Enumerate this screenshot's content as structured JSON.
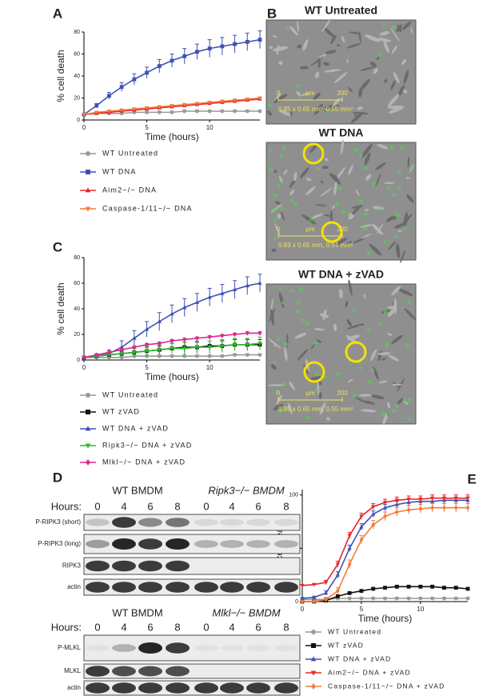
{
  "chart_data": [
    {
      "type": "line",
      "label": "A",
      "ylabel": "% cell death",
      "xlabel": "Time (hours)",
      "xlim": [
        0,
        14
      ],
      "xticks": [
        0,
        5,
        10
      ],
      "ylim": [
        0,
        80
      ],
      "yticks": [
        0,
        20,
        40,
        60,
        80
      ],
      "x": [
        0,
        1,
        2,
        3,
        4,
        5,
        6,
        7,
        8,
        9,
        10,
        11,
        12,
        13,
        14
      ],
      "series": [
        {
          "name": "WT Untreated",
          "color": "#9a9a9a",
          "marker": "circle",
          "values": [
            5,
            6,
            6,
            6,
            7,
            7,
            7,
            7,
            8,
            8,
            8,
            8,
            8,
            8,
            8
          ],
          "errors": [
            1,
            1,
            1,
            1,
            1,
            1,
            1,
            1,
            1,
            1,
            1,
            1,
            1,
            1,
            1
          ]
        },
        {
          "name": "WT DNA",
          "color": "#3f51b5",
          "marker": "square",
          "values": [
            5,
            13,
            22,
            30,
            37,
            43,
            49,
            54,
            58,
            62,
            65,
            67,
            69,
            71,
            73
          ],
          "errors": [
            1,
            2,
            3,
            4,
            5,
            5,
            6,
            6,
            7,
            7,
            8,
            8,
            8,
            8,
            8
          ]
        },
        {
          "name": "Aim2−/− DNA",
          "color": "#e8262b",
          "marker": "tri-up",
          "values": [
            5,
            6,
            7,
            8,
            9,
            10,
            11,
            12,
            13,
            14,
            15,
            16,
            17,
            18,
            19
          ],
          "errors": [
            1,
            1,
            1,
            1,
            1,
            1,
            1,
            1,
            1,
            1,
            1,
            1,
            1,
            1,
            1
          ]
        },
        {
          "name": "Caspase-1/11−/− DNA",
          "color": "#f47a3a",
          "marker": "tri-down",
          "values": [
            5,
            7,
            8,
            9,
            10,
            11,
            12,
            13,
            14,
            15,
            16,
            17,
            18,
            19,
            20
          ],
          "errors": [
            1,
            1,
            1,
            1,
            1,
            1,
            1,
            1,
            1,
            1,
            1,
            1,
            1,
            1,
            1
          ]
        }
      ]
    },
    {
      "type": "line",
      "label": "C",
      "ylabel": "% cell death",
      "xlabel": "Time (hours)",
      "xlim": [
        0,
        14
      ],
      "xticks": [
        0,
        5,
        10
      ],
      "ylim": [
        0,
        80
      ],
      "yticks": [
        0,
        20,
        40,
        60,
        80
      ],
      "x": [
        0,
        1,
        2,
        3,
        4,
        5,
        6,
        7,
        8,
        9,
        10,
        11,
        12,
        13,
        14
      ],
      "series": [
        {
          "name": "WT Untreated",
          "color": "#9a9a9a",
          "marker": "circle",
          "values": [
            2,
            2,
            2,
            2,
            3,
            3,
            3,
            3,
            3,
            3,
            3,
            3,
            4,
            4,
            4
          ],
          "errors": [
            1,
            1,
            1,
            1,
            1,
            1,
            1,
            1,
            1,
            1,
            1,
            1,
            1,
            1,
            1
          ]
        },
        {
          "name": "WT zVAD",
          "color": "#111111",
          "marker": "square",
          "values": [
            2,
            3,
            4,
            5,
            6,
            7,
            8,
            9,
            10,
            10,
            11,
            11,
            12,
            12,
            12
          ],
          "errors": [
            1,
            1,
            2,
            2,
            3,
            3,
            3,
            4,
            4,
            4,
            4,
            4,
            4,
            4,
            4
          ]
        },
        {
          "name": "WT DNA + zVAD",
          "color": "#3f51b5",
          "marker": "tri-up",
          "values": [
            2,
            3,
            5,
            10,
            17,
            24,
            30,
            36,
            41,
            45,
            49,
            52,
            55,
            58,
            60
          ],
          "errors": [
            1,
            2,
            3,
            5,
            6,
            6,
            7,
            7,
            7,
            7,
            7,
            7,
            7,
            7,
            7
          ]
        },
        {
          "name": "Ripk3−/− DNA + zVAD",
          "color": "#2eb82e",
          "marker": "tri-down",
          "values": [
            2,
            3,
            4,
            5,
            6,
            7,
            8,
            9,
            9,
            10,
            10,
            11,
            12,
            12,
            13
          ],
          "errors": [
            1,
            2,
            2,
            3,
            3,
            4,
            4,
            4,
            5,
            5,
            5,
            5,
            5,
            5,
            5
          ]
        },
        {
          "name": "Mlkl−/− DNA + zVAD",
          "color": "#e0258b",
          "marker": "diamond",
          "values": [
            2,
            4,
            6,
            8,
            10,
            12,
            13,
            15,
            16,
            17,
            18,
            19,
            20,
            21,
            21
          ],
          "errors": [
            1,
            1,
            1,
            1,
            1,
            1,
            1,
            1,
            1,
            1,
            1,
            1,
            1,
            1,
            1
          ]
        }
      ]
    },
    {
      "type": "line",
      "label": "E",
      "ylabel": "% cell death",
      "xlabel": "Time (hours)",
      "xlim": [
        0,
        14
      ],
      "xticks": [
        0,
        5,
        10
      ],
      "ylim": [
        0,
        105
      ],
      "yticks": [
        0,
        50,
        100
      ],
      "x": [
        0,
        1,
        2,
        3,
        4,
        5,
        6,
        7,
        8,
        9,
        10,
        11,
        12,
        13,
        14
      ],
      "series": [
        {
          "name": "WT Untreated",
          "color": "#9a9a9a",
          "marker": "circle",
          "values": [
            2,
            2,
            2,
            3,
            3,
            3,
            3,
            3,
            3,
            3,
            3,
            3,
            3,
            3,
            3
          ],
          "errors": [
            1,
            1,
            1,
            1,
            1,
            1,
            1,
            1,
            1,
            1,
            1,
            1,
            1,
            1,
            1
          ]
        },
        {
          "name": "WT zVAD",
          "color": "#111111",
          "marker": "square",
          "values": [
            0,
            0,
            1,
            5,
            8,
            10,
            12,
            13,
            14,
            14,
            14,
            14,
            13,
            13,
            12
          ],
          "errors": [
            1,
            1,
            1,
            1,
            1,
            1,
            1,
            1,
            1,
            1,
            1,
            1,
            1,
            1,
            1
          ]
        },
        {
          "name": "WT DNA + zVAD",
          "color": "#3f51b5",
          "marker": "tri-up",
          "values": [
            3,
            4,
            8,
            25,
            50,
            70,
            82,
            88,
            91,
            93,
            94,
            94,
            95,
            95,
            95
          ],
          "errors": [
            1,
            1,
            2,
            3,
            3,
            3,
            3,
            3,
            3,
            3,
            3,
            3,
            3,
            3,
            3
          ]
        },
        {
          "name": "Aim2−/− DNA + zVAD",
          "color": "#e8262b",
          "marker": "tri-down",
          "values": [
            15,
            16,
            18,
            35,
            62,
            80,
            89,
            93,
            95,
            96,
            96,
            97,
            97,
            97,
            97
          ],
          "errors": [
            1,
            1,
            2,
            3,
            3,
            3,
            3,
            3,
            3,
            3,
            3,
            3,
            3,
            3,
            3
          ]
        },
        {
          "name": "Caspase-1/11−/− DNA + zVAD",
          "color": "#f47a3a",
          "marker": "diamond",
          "values": [
            0,
            0,
            2,
            10,
            35,
            58,
            72,
            80,
            84,
            86,
            87,
            88,
            88,
            88,
            88
          ],
          "errors": [
            1,
            1,
            2,
            3,
            4,
            4,
            4,
            4,
            4,
            4,
            4,
            4,
            4,
            4,
            4
          ]
        }
      ]
    }
  ],
  "micrographs": {
    "label": "B",
    "images": [
      {
        "title": "WT Untreated",
        "scale": [
          "0",
          "µm",
          "200"
        ],
        "dims": "0.85 x 0.65 mm, 0.55 mm²"
      },
      {
        "title": "WT DNA",
        "scale": [
          "0",
          "µm",
          "200"
        ],
        "dims": "0.83 x 0.65 mm, 0.54 mm²"
      },
      {
        "title": "WT DNA + zVAD",
        "scale": [
          "0",
          "µm",
          "200"
        ],
        "dims": "0.85 x 0.65 mm, 0.55 mm²"
      }
    ]
  },
  "blots": {
    "label": "D",
    "groups": [
      {
        "headers": [
          "WT BMDM",
          "Ripk3−/− BMDM"
        ],
        "hours_label": "Hours:",
        "hours": [
          0,
          4,
          6,
          8,
          0,
          4,
          6,
          8
        ],
        "rows": [
          "P-RIPK3 (short)",
          "P-RIPK3 (long)",
          "RIPK3",
          "actin"
        ]
      },
      {
        "headers": [
          "WT BMDM",
          "Mlkl−/− BMDM"
        ],
        "hours_label": "Hours:",
        "hours": [
          0,
          4,
          6,
          8,
          0,
          4,
          6,
          8
        ],
        "rows": [
          "P-MLKL",
          "MLKL",
          "actin"
        ]
      }
    ]
  }
}
